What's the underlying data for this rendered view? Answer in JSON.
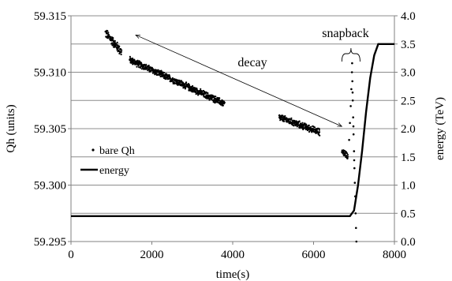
{
  "chart_data": {
    "type": "scatter",
    "xlabel": "time(s)",
    "ylabel_left": "Qh (units)",
    "ylabel_right": "energy (TeV)",
    "xlim": [
      0,
      8000
    ],
    "ylim_left": [
      59.295,
      59.315
    ],
    "ylim_right": [
      0.0,
      4.0
    ],
    "x_ticks": [
      "0",
      "2000",
      "4000",
      "6000",
      "8000"
    ],
    "y_left_ticks": [
      "59.295",
      "59.300",
      "59.305",
      "59.310",
      "59.315"
    ],
    "y_right_ticks": [
      "0.0",
      "0.5",
      "1.0",
      "1.5",
      "2.0",
      "2.5",
      "3.0",
      "3.5",
      "4.0"
    ],
    "grid": "horizontal",
    "legend": {
      "placement": "left",
      "entries": [
        {
          "label": "bare Qh",
          "marker": "dot"
        },
        {
          "label": "energy",
          "marker": "line"
        }
      ]
    },
    "annotations": {
      "decay": "decay",
      "snapback": "snapback"
    },
    "decay_arrow": {
      "from": [
        1600,
        59.3133
      ],
      "to": [
        6700,
        59.3052
      ]
    },
    "series": [
      {
        "name": "bare Qh",
        "axis": "left",
        "segments": [
          {
            "x_start": 850,
            "x_end": 1250,
            "y_start": 59.3135,
            "y_end": 59.3118,
            "spread": 0.0007
          },
          {
            "x_start": 1450,
            "x_end": 3800,
            "y_start": 59.3111,
            "y_end": 59.3072,
            "spread": 0.0005
          },
          {
            "x_start": 5150,
            "x_end": 6150,
            "y_start": 59.306,
            "y_end": 59.3047,
            "spread": 0.0005
          },
          {
            "x_start": 6700,
            "x_end": 6850,
            "y_start": 59.303,
            "y_end": 59.3026,
            "spread": 0.0005
          }
        ],
        "snapback": [
          [
            6880,
            59.304
          ],
          [
            6900,
            59.3055
          ],
          [
            6920,
            59.307
          ],
          [
            6935,
            59.3085
          ],
          [
            6950,
            59.31
          ],
          [
            6960,
            59.3092
          ],
          [
            6970,
            59.3075
          ],
          [
            6980,
            59.306
          ],
          [
            6990,
            59.3045
          ],
          [
            7000,
            59.303
          ],
          [
            7010,
            59.3015
          ],
          [
            7020,
            59.3002
          ],
          [
            7030,
            59.299
          ],
          [
            7040,
            59.2975
          ],
          [
            7050,
            59.2962
          ],
          [
            7060,
            59.295
          ],
          [
            6955,
            59.3108
          ],
          [
            6965,
            59.3082
          ],
          [
            6985,
            59.3052
          ],
          [
            7005,
            59.3022
          ]
        ]
      },
      {
        "name": "energy",
        "axis": "right",
        "points": [
          [
            0,
            0.45
          ],
          [
            6900,
            0.45
          ],
          [
            7000,
            0.55
          ],
          [
            7100,
            1.0
          ],
          [
            7200,
            1.6
          ],
          [
            7300,
            2.3
          ],
          [
            7400,
            2.9
          ],
          [
            7500,
            3.3
          ],
          [
            7600,
            3.5
          ],
          [
            8000,
            3.5
          ]
        ]
      }
    ]
  }
}
